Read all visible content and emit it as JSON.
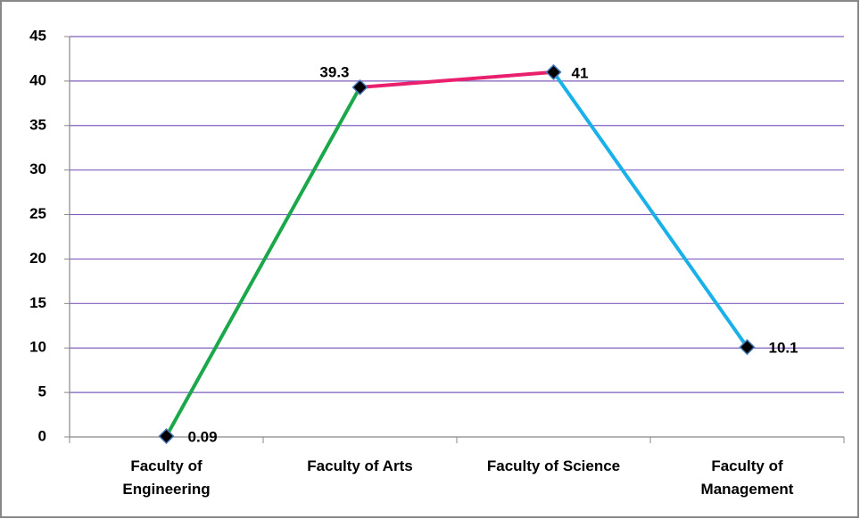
{
  "chart_data": {
    "type": "line",
    "categories": [
      "Faculty of Engineering",
      "Faculty of Arts",
      "Faculty of Science",
      "Faculty of Management"
    ],
    "values": [
      0.09,
      39.3,
      41,
      10.1
    ],
    "segment_colors": [
      "#1aa84a",
      "#e8206e",
      "#1ab0e8"
    ],
    "marker_color": "#000000",
    "ylim": [
      0,
      45
    ],
    "yticks": [
      0,
      5,
      10,
      15,
      20,
      25,
      30,
      35,
      40,
      45
    ],
    "grid": true
  }
}
